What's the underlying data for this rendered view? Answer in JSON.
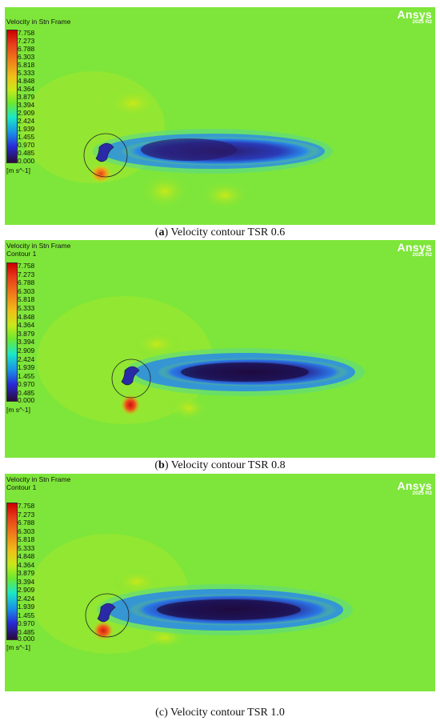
{
  "panels": [
    {
      "title_lines": [
        "Velocity in Stn Frame"
      ],
      "colorbar_ticks": [
        "7.758",
        "7.273",
        "6.788",
        "6.303",
        "5.818",
        "5.333",
        "4.848",
        "4.364",
        "3.879",
        "3.394",
        "2.909",
        "2.424",
        "1.939",
        "1.455",
        "0.970",
        "0.485",
        "0.000"
      ],
      "unit": "[m s^-1]",
      "logo": "Ansys",
      "logo_version": "2025 R2",
      "caption_label": "a",
      "caption_text": " Velocity contour TSR 0.6",
      "caption_open": "(",
      "caption_close": ")"
    },
    {
      "title_lines": [
        "Velocity in Stn Frame",
        "Contour 1"
      ],
      "colorbar_ticks": [
        "7.758",
        "7.273",
        "6.788",
        "6.303",
        "5.818",
        "5.333",
        "4.848",
        "4.364",
        "3.879",
        "3.394",
        "2.909",
        "2.424",
        "1.939",
        "1.455",
        "0.970",
        "0.485",
        "0.000"
      ],
      "unit": "[m s^-1]",
      "logo": "Ansys",
      "logo_version": "2025 R2",
      "caption_label": "b",
      "caption_text": " Velocity contour TSR 0.8",
      "caption_open": "(",
      "caption_close": ")"
    },
    {
      "title_lines": [
        "Velocity in Stn Frame",
        "Contour 1"
      ],
      "colorbar_ticks": [
        "7.758",
        "7.273",
        "6.788",
        "6.303",
        "5.818",
        "5.333",
        "4.848",
        "4.364",
        "3.879",
        "3.394",
        "2.909",
        "2.424",
        "1.939",
        "1.455",
        "0.970",
        "0.485",
        "0.000"
      ],
      "unit": "[m s^-1]",
      "logo": "Ansys",
      "logo_version": "2025 R2",
      "caption_label": "c",
      "caption_text": " Velocity contour TSR 1.0",
      "caption_open": "(",
      "caption_close": ")"
    }
  ],
  "colors": {
    "background_field": "#7ee63a",
    "wake_dark": "#2a1a6a",
    "wake_blue": "#2a6ae8",
    "hot_red": "#e83a1a",
    "logo_text": "#ffffff"
  }
}
